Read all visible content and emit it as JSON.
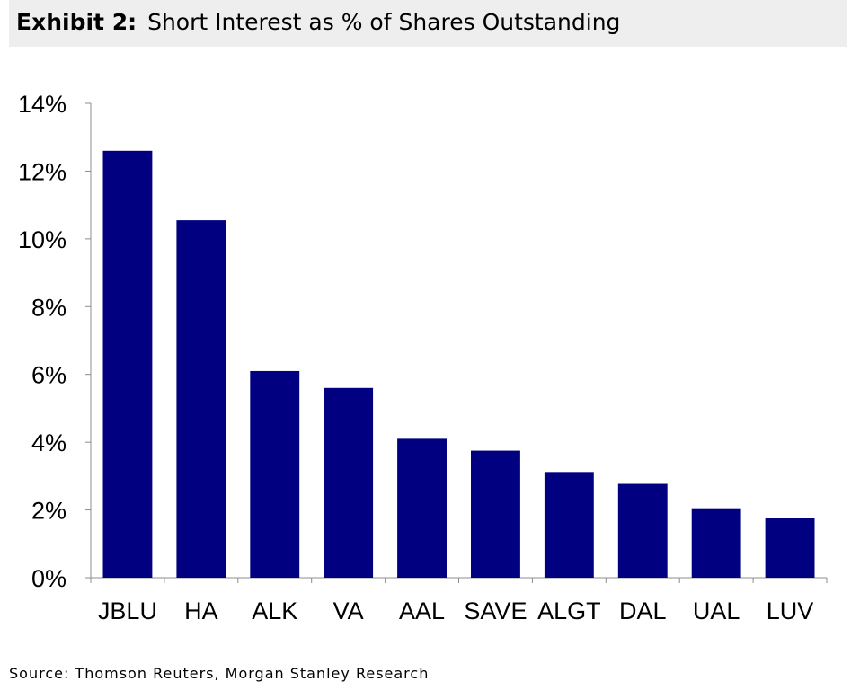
{
  "header": {
    "exhibit_label": "Exhibit 2:",
    "title": "Short Interest as % of Shares Outstanding"
  },
  "source": "Source: Thomson Reuters, Morgan Stanley Research",
  "colors": {
    "bar": "#000080",
    "axis": "#8c8c8c",
    "header_background": "#eeeeee"
  },
  "chart_data": {
    "type": "bar",
    "title": "Short Interest as % of Shares Outstanding",
    "xlabel": "",
    "ylabel": "",
    "categories": [
      "JBLU",
      "HA",
      "ALK",
      "VA",
      "AAL",
      "SAVE",
      "ALGT",
      "DAL",
      "UAL",
      "LUV"
    ],
    "values": [
      12.6,
      10.55,
      6.1,
      5.6,
      4.1,
      3.75,
      3.12,
      2.77,
      2.05,
      1.75
    ],
    "ylim": [
      0,
      14
    ],
    "y_ticks": [
      0,
      2,
      4,
      6,
      8,
      10,
      12,
      14
    ],
    "y_tick_labels": [
      "0%",
      "2%",
      "4%",
      "6%",
      "8%",
      "10%",
      "12%",
      "14%"
    ],
    "grid": false,
    "legend": "none"
  }
}
